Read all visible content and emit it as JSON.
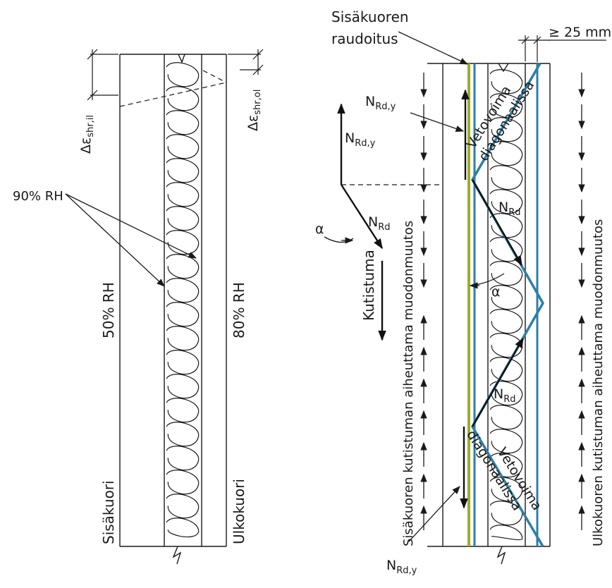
{
  "colors": {
    "ink": "#1a1a1a",
    "diagonal": "#2e7fa6",
    "reinforcement": "#9aae2c"
  },
  "left_panel": {
    "delta_inner_prefix": "Δε",
    "delta_inner_sub": "shr,il",
    "delta_outer_prefix": "Δε",
    "delta_outer_sub": "shr,ol",
    "rh_insulation": "90% RH",
    "rh_inner": "50% RH",
    "rh_outer": "80% RH",
    "inner_shell": "Sisäkuori",
    "outer_shell": "Ulkokuori"
  },
  "right_panel": {
    "reinforcement_line1": "Sisäkuoren",
    "reinforcement_line2": "raudoitus",
    "min_cover": "≥ 25 mm",
    "force_n": "N",
    "sub_rd_y": "Rd,y",
    "sub_rd": "Rd",
    "angle": "α",
    "shrinkage": "Kutistuma",
    "tension_line1": "Vetovoima",
    "tension_line2": "diagonaalissa",
    "inner_deformation": "Sisäkuoren kutistuman aiheuttama muodonmuutos",
    "outer_deformation": "Ulkokuoren kutistuman aiheuttama muodonmuutos"
  }
}
